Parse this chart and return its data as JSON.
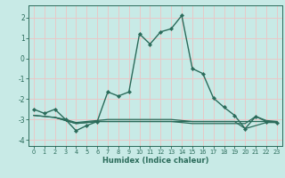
{
  "xlabel": "Humidex (Indice chaleur)",
  "background_color": "#c8eae6",
  "grid_color": "#e8c8c8",
  "line_color": "#2a6b5a",
  "xlim": [
    -0.5,
    23.5
  ],
  "ylim": [
    -4.3,
    2.6
  ],
  "yticks": [
    -4,
    -3,
    -2,
    -1,
    0,
    1,
    2
  ],
  "xticks": [
    0,
    1,
    2,
    3,
    4,
    5,
    6,
    7,
    8,
    9,
    10,
    11,
    12,
    13,
    14,
    15,
    16,
    17,
    18,
    19,
    20,
    21,
    22,
    23
  ],
  "series": [
    [
      0,
      -2.5
    ],
    [
      1,
      -2.7
    ],
    [
      2,
      -2.5
    ],
    [
      3,
      -3.0
    ],
    [
      4,
      -3.55
    ],
    [
      5,
      -3.3
    ],
    [
      6,
      -3.1
    ],
    [
      7,
      -1.65
    ],
    [
      8,
      -1.85
    ],
    [
      9,
      -1.65
    ],
    [
      10,
      1.2
    ],
    [
      11,
      0.7
    ],
    [
      12,
      1.3
    ],
    [
      13,
      1.45
    ],
    [
      14,
      2.1
    ],
    [
      15,
      -0.5
    ],
    [
      16,
      -0.75
    ],
    [
      17,
      -1.95
    ],
    [
      18,
      -2.4
    ],
    [
      19,
      -2.8
    ],
    [
      20,
      -3.45
    ],
    [
      21,
      -2.85
    ],
    [
      22,
      -3.1
    ],
    [
      23,
      -3.15
    ]
  ],
  "flat_series": [
    [
      [
        0,
        -2.8
      ],
      [
        1,
        -2.85
      ],
      [
        2,
        -2.9
      ],
      [
        3,
        -3.0
      ],
      [
        4,
        -3.15
      ],
      [
        5,
        -3.1
      ],
      [
        6,
        -3.05
      ],
      [
        7,
        -3.0
      ],
      [
        8,
        -3.0
      ],
      [
        9,
        -3.0
      ],
      [
        10,
        -3.0
      ],
      [
        11,
        -3.0
      ],
      [
        12,
        -3.0
      ],
      [
        13,
        -3.0
      ],
      [
        14,
        -3.05
      ],
      [
        15,
        -3.1
      ],
      [
        16,
        -3.1
      ],
      [
        17,
        -3.1
      ],
      [
        18,
        -3.1
      ],
      [
        19,
        -3.1
      ],
      [
        20,
        -3.45
      ],
      [
        21,
        -3.3
      ],
      [
        22,
        -3.15
      ],
      [
        23,
        -3.15
      ]
    ],
    [
      [
        0,
        -2.8
      ],
      [
        1,
        -2.85
      ],
      [
        2,
        -2.9
      ],
      [
        3,
        -3.05
      ],
      [
        4,
        -3.2
      ],
      [
        5,
        -3.15
      ],
      [
        6,
        -3.1
      ],
      [
        7,
        -3.1
      ],
      [
        8,
        -3.1
      ],
      [
        9,
        -3.1
      ],
      [
        10,
        -3.1
      ],
      [
        11,
        -3.1
      ],
      [
        12,
        -3.1
      ],
      [
        13,
        -3.1
      ],
      [
        14,
        -3.15
      ],
      [
        15,
        -3.2
      ],
      [
        16,
        -3.2
      ],
      [
        17,
        -3.2
      ],
      [
        18,
        -3.2
      ],
      [
        19,
        -3.2
      ],
      [
        20,
        -3.2
      ],
      [
        21,
        -2.85
      ],
      [
        22,
        -3.05
      ],
      [
        23,
        -3.1
      ]
    ],
    [
      [
        2,
        -2.9
      ],
      [
        3,
        -3.05
      ],
      [
        4,
        -3.2
      ],
      [
        5,
        -3.15
      ],
      [
        6,
        -3.1
      ],
      [
        7,
        -3.1
      ],
      [
        8,
        -3.1
      ],
      [
        9,
        -3.1
      ],
      [
        10,
        -3.1
      ],
      [
        11,
        -3.1
      ],
      [
        12,
        -3.1
      ],
      [
        13,
        -3.1
      ],
      [
        14,
        -3.1
      ],
      [
        15,
        -3.1
      ],
      [
        16,
        -3.1
      ],
      [
        17,
        -3.1
      ],
      [
        18,
        -3.1
      ],
      [
        19,
        -3.1
      ],
      [
        20,
        -3.1
      ],
      [
        21,
        -3.1
      ],
      [
        22,
        -3.1
      ],
      [
        23,
        -3.1
      ]
    ]
  ]
}
